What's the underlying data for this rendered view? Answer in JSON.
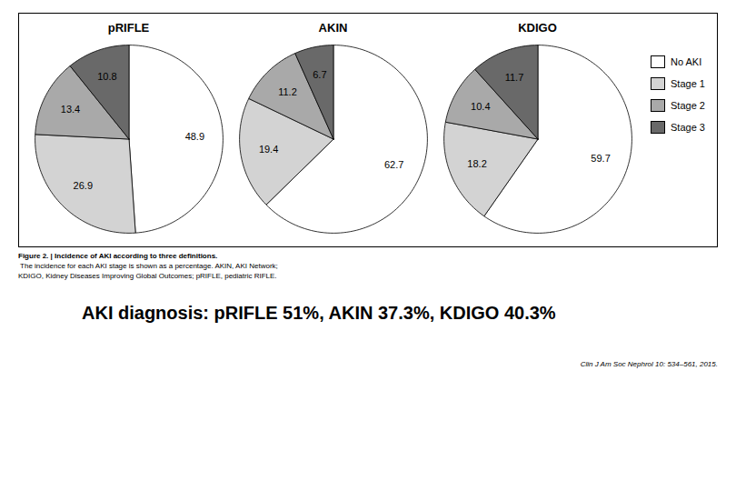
{
  "chart_data": [
    {
      "type": "pie",
      "title": "pRIFLE",
      "categories": [
        "No AKI",
        "Stage 1",
        "Stage 2",
        "Stage 3"
      ],
      "values": [
        48.9,
        26.9,
        13.4,
        10.8
      ],
      "colors": [
        "#ffffff",
        "#d3d3d3",
        "#a9a9a9",
        "#696969"
      ],
      "data_labels": true
    },
    {
      "type": "pie",
      "title": "AKIN",
      "categories": [
        "No AKI",
        "Stage 1",
        "Stage 2",
        "Stage 3"
      ],
      "values": [
        62.7,
        19.4,
        11.2,
        6.7
      ],
      "colors": [
        "#ffffff",
        "#d3d3d3",
        "#a9a9a9",
        "#696969"
      ],
      "data_labels": true
    },
    {
      "type": "pie",
      "title": "KDIGO",
      "categories": [
        "No AKI",
        "Stage 1",
        "Stage 2",
        "Stage 3"
      ],
      "values": [
        59.7,
        18.2,
        10.4,
        11.7
      ],
      "colors": [
        "#ffffff",
        "#d3d3d3",
        "#a9a9a9",
        "#696969"
      ],
      "data_labels": true,
      "legend": "right"
    }
  ],
  "caption": [
    "Figure 2. | Incidence of AKI according to three definitions.",
    " The incidence for each AKI stage is shown as a percentage. AKIN, AKI Network;",
    "KDIGO, Kidney Diseases Improving Global Outcomes; pRIFLE, pediatric RIFLE."
  ],
  "annotations": [
    "AKI diagnosis: pRIFLE 51%, AKIN 37.3%, KDIGO 40.3%",
    "Clin J Am Soc Nephrol 10: 534–561, 2015."
  ]
}
